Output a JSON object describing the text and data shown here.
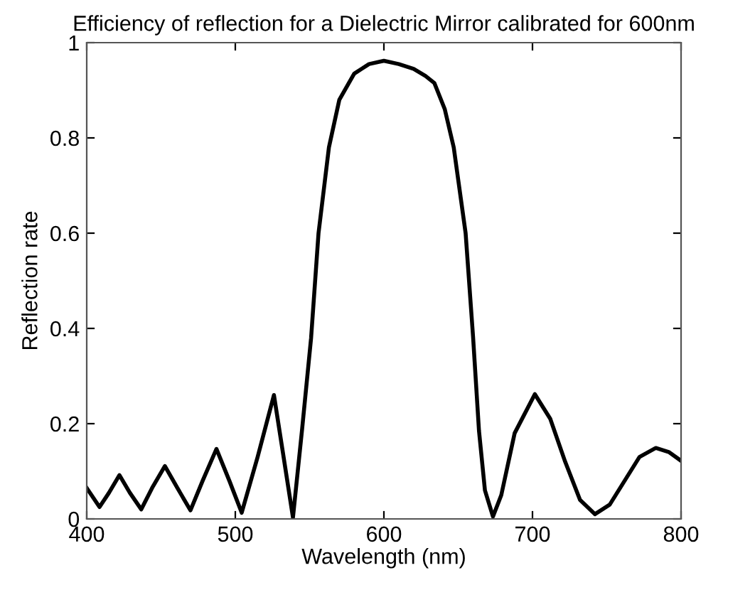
{
  "chart_data": {
    "type": "line",
    "title": "Efficiency of reflection for a Dielectric Mirror calibrated for 600nm",
    "xlabel": "Wavelength (nm)",
    "ylabel": "Reflection rate",
    "x": [
      400,
      408.6,
      415,
      422,
      429,
      436.7,
      444,
      452.6,
      461,
      469.8,
      478,
      487.3,
      496,
      504.3,
      515,
      526,
      532,
      538.8,
      545,
      551,
      556,
      563,
      570,
      580,
      590,
      600,
      610,
      620,
      628,
      634,
      641,
      647,
      655,
      660,
      664,
      668,
      673.4,
      679,
      688,
      701.6,
      712,
      722,
      732,
      742,
      752,
      762,
      772,
      783,
      792,
      800
    ],
    "series": [
      {
        "color": "#000000",
        "values": [
          0.065,
          0.025,
          0.055,
          0.092,
          0.055,
          0.02,
          0.065,
          0.111,
          0.065,
          0.018,
          0.08,
          0.147,
          0.08,
          0.013,
          0.13,
          0.26,
          0.14,
          0.003,
          0.19,
          0.38,
          0.6,
          0.78,
          0.88,
          0.935,
          0.955,
          0.962,
          0.955,
          0.945,
          0.93,
          0.915,
          0.86,
          0.78,
          0.6,
          0.383,
          0.185,
          0.06,
          0.005,
          0.05,
          0.18,
          0.262,
          0.21,
          0.12,
          0.04,
          0.01,
          0.03,
          0.08,
          0.13,
          0.149,
          0.14,
          0.122
        ]
      }
    ],
    "xlim": [
      400,
      800
    ],
    "xticks": [
      400,
      500,
      600,
      700,
      800
    ],
    "ylim": [
      0,
      1
    ],
    "yticks": [
      0,
      0.2,
      0.4,
      0.6,
      0.8,
      1
    ],
    "grid": false,
    "legend": false,
    "marker": "none",
    "line_style": "solid"
  }
}
